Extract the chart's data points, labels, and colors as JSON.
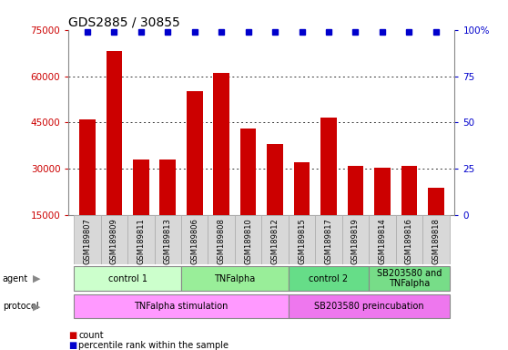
{
  "title": "GDS2885 / 30855",
  "samples": [
    "GSM189807",
    "GSM189809",
    "GSM189811",
    "GSM189813",
    "GSM189806",
    "GSM189808",
    "GSM189810",
    "GSM189812",
    "GSM189815",
    "GSM189817",
    "GSM189819",
    "GSM189814",
    "GSM189816",
    "GSM189818"
  ],
  "counts": [
    46000,
    68000,
    33000,
    33000,
    55000,
    61000,
    43000,
    38000,
    32000,
    46500,
    31000,
    30500,
    31000,
    24000
  ],
  "percentile_ranks": [
    99,
    99,
    99,
    99,
    99,
    99,
    99,
    99,
    99,
    99,
    99,
    99,
    99,
    99
  ],
  "ylim": [
    15000,
    75000
  ],
  "yticks": [
    15000,
    30000,
    45000,
    60000,
    75000
  ],
  "right_yticks": [
    0,
    25,
    50,
    75,
    100
  ],
  "bar_color": "#cc0000",
  "dot_color": "#0000cc",
  "bar_width": 0.6,
  "agent_groups": [
    {
      "label": "control 1",
      "start": 0,
      "end": 4,
      "color": "#ccffcc"
    },
    {
      "label": "TNFalpha",
      "start": 4,
      "end": 8,
      "color": "#99ee99"
    },
    {
      "label": "control 2",
      "start": 8,
      "end": 11,
      "color": "#66dd88"
    },
    {
      "label": "SB203580 and\nTNFalpha",
      "start": 11,
      "end": 14,
      "color": "#77dd88"
    }
  ],
  "protocol_groups": [
    {
      "label": "TNFalpha stimulation",
      "start": 0,
      "end": 8,
      "color": "#ff99ff"
    },
    {
      "label": "SB203580 preincubation",
      "start": 8,
      "end": 14,
      "color": "#ee77ee"
    }
  ],
  "legend_count_label": "count",
  "legend_pct_label": "percentile rank within the sample",
  "bar_color_legend": "#cc0000",
  "dot_color_legend": "#0000cc",
  "title_fontsize": 10,
  "tick_fontsize": 7.5,
  "label_fontsize": 7.5,
  "sample_fontsize": 6,
  "background_color": "#ffffff",
  "plot_bg_color": "#ffffff",
  "gridline_color": "#333333",
  "spine_color": "#888888"
}
